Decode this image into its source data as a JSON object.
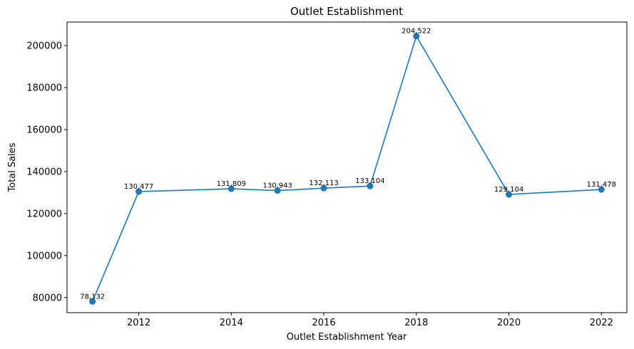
{
  "chart_data": {
    "type": "line",
    "title": "Outlet Establishment",
    "xlabel": "Outlet Establishment Year",
    "ylabel": "Total Sales",
    "x": [
      2011,
      2012,
      2014,
      2015,
      2016,
      2017,
      2018,
      2020,
      2022
    ],
    "series": [
      {
        "values": [
          78132,
          130477,
          131809,
          130943,
          132113,
          133104,
          204522,
          129104,
          131478
        ],
        "data_labels": [
          "78,132",
          "130,477",
          "131,809",
          "130,943",
          "132,113",
          "133,104",
          "204,522",
          "129,104",
          "131,478"
        ]
      }
    ],
    "xlim": [
      2010.45,
      2022.55
    ],
    "ylim": [
      72800,
      211200
    ],
    "x_ticks": [
      2012,
      2014,
      2016,
      2018,
      2020,
      2022
    ],
    "x_tick_labels": [
      "2012",
      "2014",
      "2016",
      "2018",
      "2020",
      "2022"
    ],
    "y_ticks": [
      80000,
      100000,
      120000,
      140000,
      160000,
      180000,
      200000
    ],
    "y_tick_labels": [
      "80000",
      "100000",
      "120000",
      "140000",
      "160000",
      "180000",
      "200000"
    ],
    "grid": false,
    "line_color": "#1f77b4"
  }
}
